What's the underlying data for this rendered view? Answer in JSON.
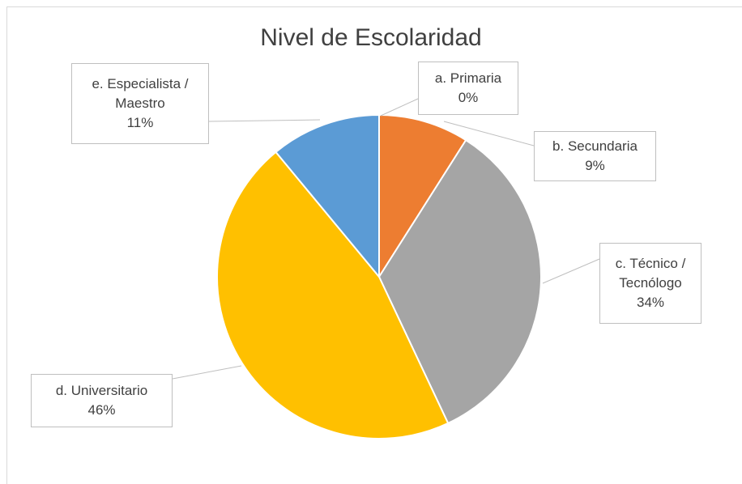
{
  "chart_data": {
    "type": "pie",
    "title": "Nivel de Escolaridad",
    "categories": [
      "a. Primaria",
      "b. Secundaria",
      "c. Técnico / Tecnólogo",
      "d. Universitario",
      "e. Especialista / Maestro"
    ],
    "values": [
      0,
      9,
      34,
      46,
      11
    ],
    "value_labels": [
      "0%",
      "9%",
      "34%",
      "46%",
      "11%"
    ],
    "colors": [
      "#4472c4",
      "#ed7d31",
      "#a5a5a5",
      "#ffc000",
      "#5b9bd5"
    ]
  }
}
